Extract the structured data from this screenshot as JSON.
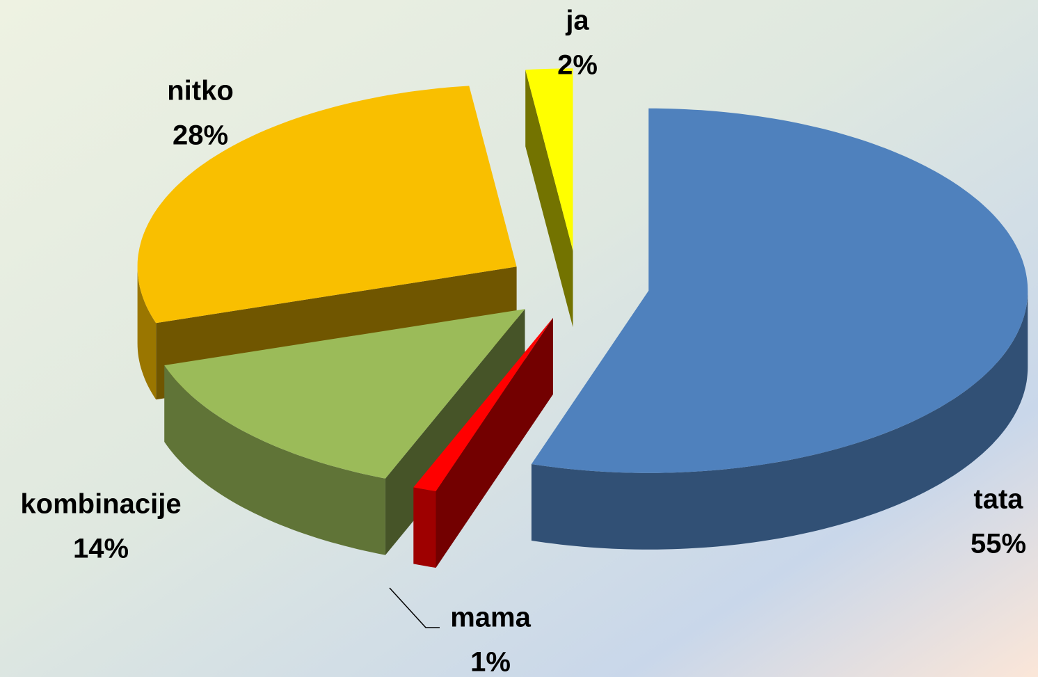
{
  "chart_data": {
    "type": "pie",
    "categories": [
      "tata",
      "mama",
      "kombinacije",
      "nitko",
      "ja"
    ],
    "values": [
      55,
      1,
      14,
      28,
      2
    ],
    "value_labels": [
      "55%",
      "1%",
      "14%",
      "28%",
      "2%"
    ],
    "colors": [
      "#4f81bd",
      "#ff0000",
      "#9bbb59",
      "#f9bf00",
      "#ffff00"
    ]
  }
}
